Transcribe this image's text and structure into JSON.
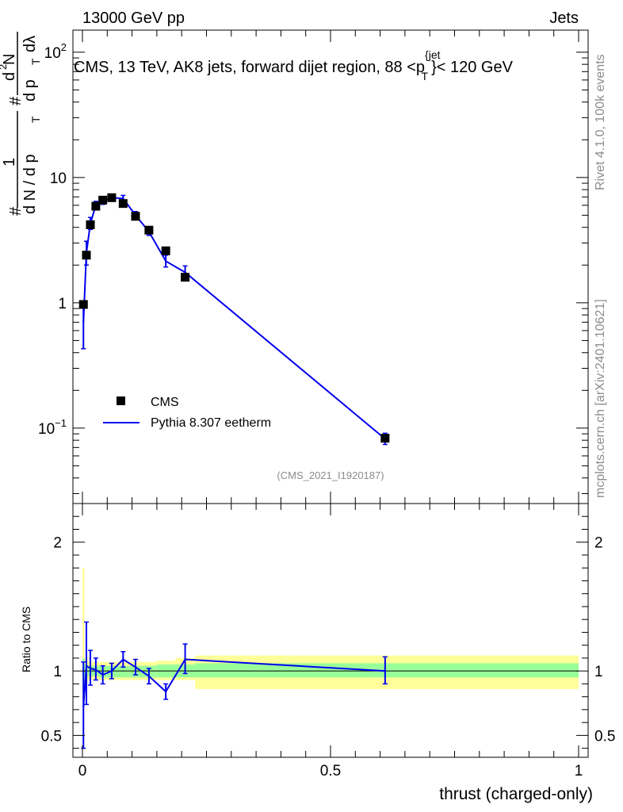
{
  "header": {
    "left": "13000 GeV pp",
    "right": "Jets"
  },
  "side_labels": {
    "rivet": "Rivet 4.1.0,  100k events",
    "mcplots": "mcplots.cern.ch [arXiv:2401.10621]"
  },
  "chart_data": [
    {
      "type": "scatter",
      "yscale": "log",
      "title": "CMS, 13 TeV, AK8 jets, forward dijet region, 88 <p_T^{jet}< 120 GeV",
      "title_parts": {
        "main": "CMS, 13 TeV, AK8 jets, forward dijet region, 88 <p",
        "sup": "{jet",
        "sub": "T",
        "tail": "}< 120 GeV"
      },
      "analysis_id": "(CMS_2021_I1920187)",
      "ylabel": "1/(dN/dp_T) d^2N/(dp_T dλ)",
      "ylabel_parts": {
        "hash": "#",
        "one": "1",
        "dn": "d N / d p",
        "T": "T",
        "d2n": "d",
        "two": "2",
        "N": "N",
        "dp": "d p",
        "dl": "dλ"
      },
      "xlim": [
        0,
        1
      ],
      "ylim": [
        0.025,
        150
      ],
      "yticks": [
        {
          "value": 0.1,
          "base": "10",
          "exp": "−1"
        },
        {
          "value": 1,
          "base": "1",
          "exp": ""
        },
        {
          "value": 10,
          "base": "10",
          "exp": ""
        },
        {
          "value": 100,
          "base": "10",
          "exp": "2"
        }
      ],
      "legend": [
        {
          "name": "CMS",
          "marker": "square",
          "color": "#000000"
        },
        {
          "name": "Pythia 8.307 eetherm",
          "marker": "line",
          "color": "#0000ee"
        }
      ],
      "series": [
        {
          "name": "CMS",
          "x": [
            0.002,
            0.008,
            0.016,
            0.027,
            0.041,
            0.059,
            0.082,
            0.107,
            0.134,
            0.168,
            0.207,
            0.61
          ],
          "y": [
            0.97,
            2.4,
            4.2,
            5.9,
            6.6,
            6.9,
            6.2,
            4.9,
            3.8,
            2.6,
            1.6,
            0.083
          ]
        },
        {
          "name": "Pythia 8.307 eetherm",
          "x": [
            0.002,
            0.008,
            0.016,
            0.027,
            0.041,
            0.059,
            0.082,
            0.107,
            0.134,
            0.168,
            0.207,
            0.61
          ],
          "y": [
            0.7,
            2.5,
            4.3,
            6.0,
            6.5,
            6.9,
            6.8,
            5.0,
            3.7,
            2.15,
            1.75,
            0.082
          ],
          "err_up": [
            0.3,
            0.6,
            0.5,
            0.45,
            0.45,
            0.4,
            0.4,
            0.35,
            0.3,
            0.25,
            0.22,
            0.009
          ],
          "err_down": [
            0.27,
            0.5,
            0.45,
            0.4,
            0.4,
            0.35,
            0.35,
            0.3,
            0.25,
            0.22,
            0.2,
            0.008
          ]
        }
      ]
    },
    {
      "type": "line",
      "ylabel": "Ratio to CMS",
      "xlabel": "thrust (charged-only)",
      "xlim": [
        0,
        1
      ],
      "ylim": [
        0.33,
        2.3
      ],
      "xticks": [
        0,
        0.5,
        1
      ],
      "xtick_labels": [
        "0",
        "0.5",
        "1"
      ],
      "yticks": [
        0.5,
        1,
        2
      ],
      "ytick_labels": [
        "0.5",
        "1",
        "2"
      ],
      "band_edges": [
        0,
        0.004,
        0.011,
        0.021,
        0.034,
        0.049,
        0.069,
        0.094,
        0.12,
        0.149,
        0.187,
        0.227,
        1.0
      ],
      "inner_band": {
        "color": "#99ff99",
        "lo": [
          0.91,
          0.95,
          0.96,
          0.96,
          0.95,
          0.95,
          0.95,
          0.95,
          0.95,
          0.95,
          0.95,
          0.95
        ],
        "hi": [
          1.1,
          1.05,
          1.04,
          1.04,
          1.04,
          1.04,
          1.04,
          1.04,
          1.04,
          1.05,
          1.05,
          1.06
        ]
      },
      "outer_band": {
        "color": "#ffff99",
        "lo": [
          0.78,
          0.9,
          0.93,
          0.93,
          0.93,
          0.93,
          0.93,
          0.93,
          0.93,
          0.93,
          0.93,
          0.86
        ],
        "hi": [
          1.8,
          1.1,
          1.07,
          1.07,
          1.07,
          1.07,
          1.07,
          1.07,
          1.07,
          1.08,
          1.1,
          1.12
        ]
      },
      "series": [
        {
          "name": "Pythia 8.307 eetherm / CMS",
          "x": [
            0.002,
            0.008,
            0.016,
            0.027,
            0.041,
            0.059,
            0.082,
            0.107,
            0.134,
            0.168,
            0.207,
            0.61
          ],
          "y": [
            0.72,
            1.04,
            1.02,
            1.01,
            0.97,
            1.0,
            1.09,
            1.03,
            0.96,
            0.84,
            1.09,
            1.0
          ],
          "err_up": [
            0.35,
            0.34,
            0.14,
            0.09,
            0.07,
            0.06,
            0.06,
            0.06,
            0.06,
            0.06,
            0.12,
            0.11
          ],
          "err_down": [
            0.32,
            0.3,
            0.13,
            0.08,
            0.07,
            0.06,
            0.06,
            0.06,
            0.06,
            0.06,
            0.11,
            0.1
          ]
        }
      ]
    }
  ]
}
